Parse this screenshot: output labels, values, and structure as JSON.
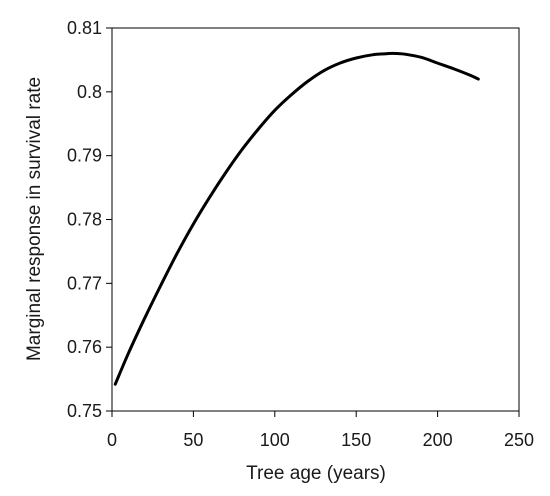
{
  "chart_data": {
    "type": "line",
    "title": "",
    "xlabel": "Tree age (years)",
    "ylabel": "Marginal response in  survival rate",
    "xlim": [
      0,
      250
    ],
    "ylim": [
      0.75,
      0.81
    ],
    "x_ticks": [
      0,
      50,
      100,
      150,
      200,
      250
    ],
    "x_tick_labels": [
      "0",
      "50",
      "100",
      "150",
      "200",
      "250"
    ],
    "y_ticks": [
      0.75,
      0.76,
      0.77,
      0.78,
      0.79,
      0.8,
      0.81
    ],
    "y_tick_labels": [
      "0.75",
      "0.76",
      "0.77",
      "0.78",
      "0.79",
      "0.8",
      "0.81"
    ],
    "grid": false,
    "legend": "none",
    "line_color": "#000000",
    "series": [
      {
        "x": [
          2,
          10,
          20,
          30,
          40,
          50,
          60,
          70,
          80,
          90,
          100,
          110,
          120,
          130,
          140,
          150,
          160,
          170,
          175,
          180,
          190,
          200,
          210,
          220,
          225
        ],
        "values": [
          0.7542,
          0.759,
          0.7645,
          0.7697,
          0.7747,
          0.7793,
          0.7835,
          0.7874,
          0.791,
          0.7942,
          0.7971,
          0.7995,
          0.8016,
          0.8033,
          0.8045,
          0.8053,
          0.8058,
          0.806,
          0.806,
          0.8059,
          0.8054,
          0.8045,
          0.8036,
          0.8026,
          0.802
        ]
      }
    ]
  }
}
